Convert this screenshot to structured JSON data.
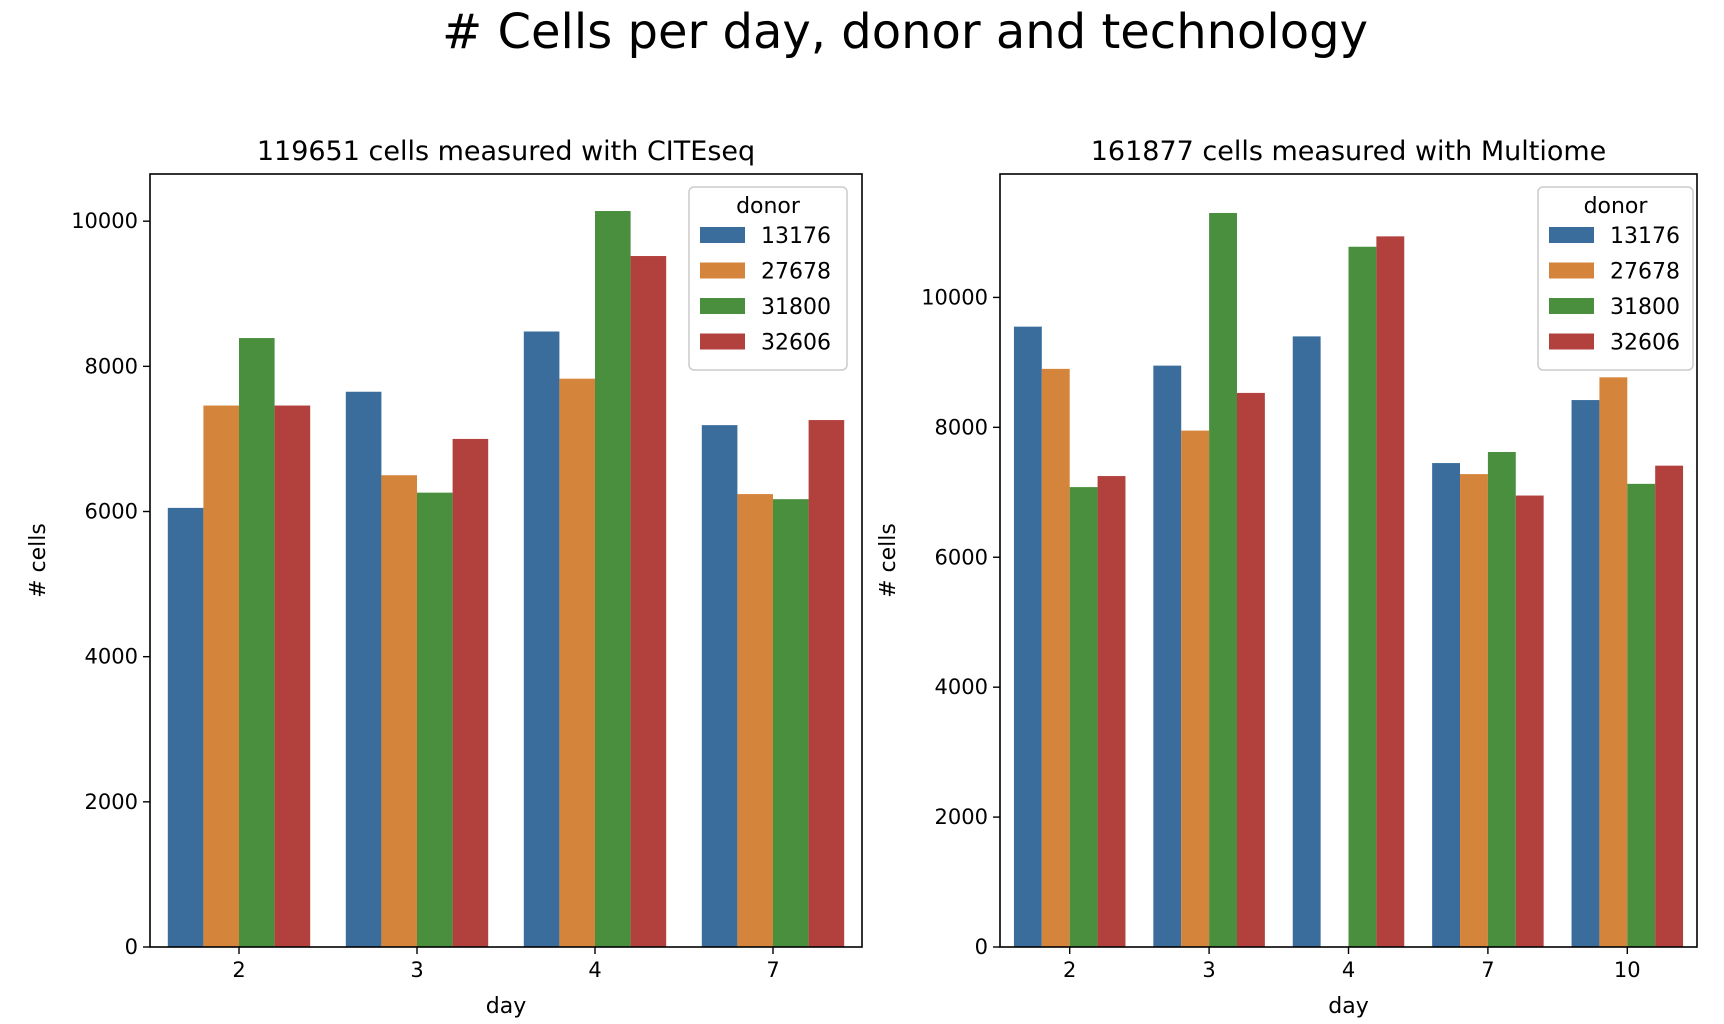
{
  "figure": {
    "title": "# Cells per day, donor and technology"
  },
  "colors": {
    "13176": "#3a6d9c",
    "27678": "#d5843b",
    "31800": "#4a8f3e",
    "32606": "#b2413d"
  },
  "chart_data": [
    {
      "type": "bar",
      "title": "119651 cells measured with CITEseq",
      "xlabel": "day",
      "ylabel": "# cells",
      "ylim": [
        0,
        10650
      ],
      "yticks": [
        0,
        2000,
        4000,
        6000,
        8000,
        10000
      ],
      "categories": [
        "2",
        "3",
        "4",
        "7"
      ],
      "legend": {
        "title": "donor",
        "placement": "top-right"
      },
      "series": [
        {
          "name": "13176",
          "values": [
            6050,
            7650,
            8480,
            7190
          ]
        },
        {
          "name": "27678",
          "values": [
            7460,
            6500,
            7830,
            6240
          ]
        },
        {
          "name": "31800",
          "values": [
            8390,
            6260,
            10140,
            6170
          ]
        },
        {
          "name": "32606",
          "values": [
            7460,
            7000,
            9520,
            7260
          ]
        }
      ]
    },
    {
      "type": "bar",
      "title": "161877 cells measured with Multiome",
      "xlabel": "day",
      "ylabel": "# cells",
      "ylim": [
        0,
        11900
      ],
      "yticks": [
        0,
        2000,
        4000,
        6000,
        8000,
        10000
      ],
      "categories": [
        "2",
        "3",
        "4",
        "7",
        "10"
      ],
      "legend": {
        "title": "donor",
        "placement": "top-right"
      },
      "series": [
        {
          "name": "13176",
          "values": [
            9550,
            8950,
            9400,
            7450,
            8420
          ]
        },
        {
          "name": "27678",
          "values": [
            8900,
            7950,
            null,
            7280,
            8770
          ]
        },
        {
          "name": "31800",
          "values": [
            7080,
            11300,
            10780,
            7620,
            7130
          ]
        },
        {
          "name": "32606",
          "values": [
            7250,
            8530,
            10940,
            6950,
            7410
          ]
        }
      ]
    }
  ]
}
